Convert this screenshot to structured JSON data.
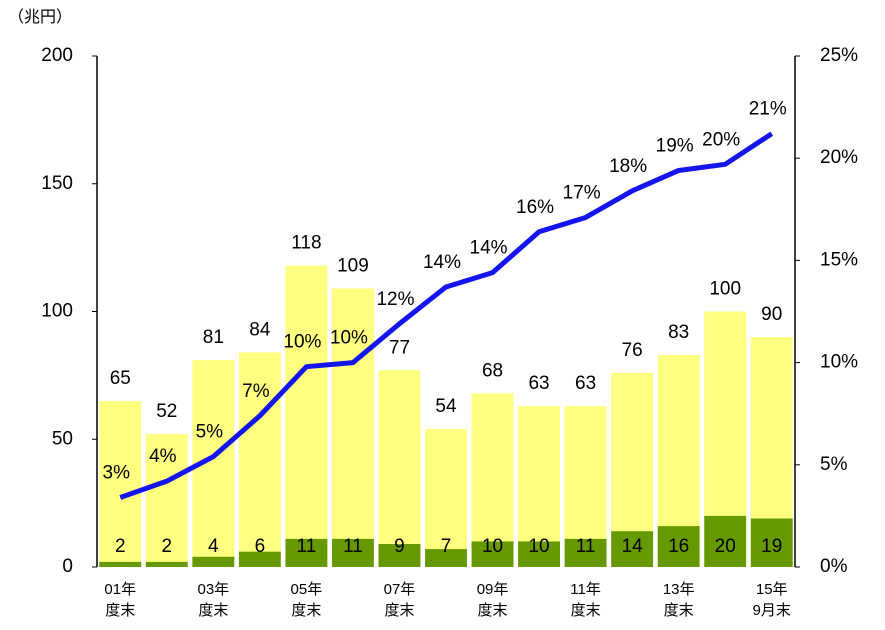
{
  "chart_data": {
    "type": "bar",
    "y_label": "（兆円）",
    "categories": [
      "01年\n度末",
      null,
      "03年\n度末",
      null,
      "05年\n度末",
      null,
      "07年\n度末",
      null,
      "09年\n度末",
      null,
      "11年\n度末",
      null,
      "13年\n度末",
      null,
      "15年\n9月末"
    ],
    "series": [
      {
        "type": "bar",
        "color": "#ffff80",
        "values": [
          65,
          52,
          81,
          84,
          118,
          109,
          77,
          54,
          68,
          63,
          63,
          76,
          83,
          100,
          90
        ]
      },
      {
        "type": "bar",
        "color": "#669900",
        "values": [
          2,
          2,
          4,
          6,
          11,
          11,
          9,
          7,
          10,
          10,
          11,
          14,
          16,
          20,
          19
        ]
      },
      {
        "type": "line",
        "axis": "y2",
        "color": "#1414f0",
        "values": [
          3.4,
          4.2,
          5.4,
          7.4,
          9.8,
          10.0,
          11.9,
          13.7,
          14.4,
          16.4,
          17.1,
          18.4,
          19.4,
          19.7,
          21.2
        ],
        "value_labels": [
          "3%",
          "4%",
          "5%",
          "7%",
          "10%",
          "10%",
          "12%",
          "14%",
          "14%",
          "16%",
          "17%",
          "18%",
          "19%",
          "20%",
          "21%"
        ]
      }
    ],
    "ylim": [
      0,
      200
    ],
    "yticks": [
      0,
      50,
      100,
      150,
      200
    ],
    "y2lim": [
      0,
      25
    ],
    "y2ticks": [
      {
        "value": 0,
        "label": "0%"
      },
      {
        "value": 5,
        "label": "5%"
      },
      {
        "value": 10,
        "label": "10%"
      },
      {
        "value": 15,
        "label": "15%"
      },
      {
        "value": 20,
        "label": "20%"
      },
      {
        "value": 25,
        "label": "25%"
      }
    ]
  }
}
